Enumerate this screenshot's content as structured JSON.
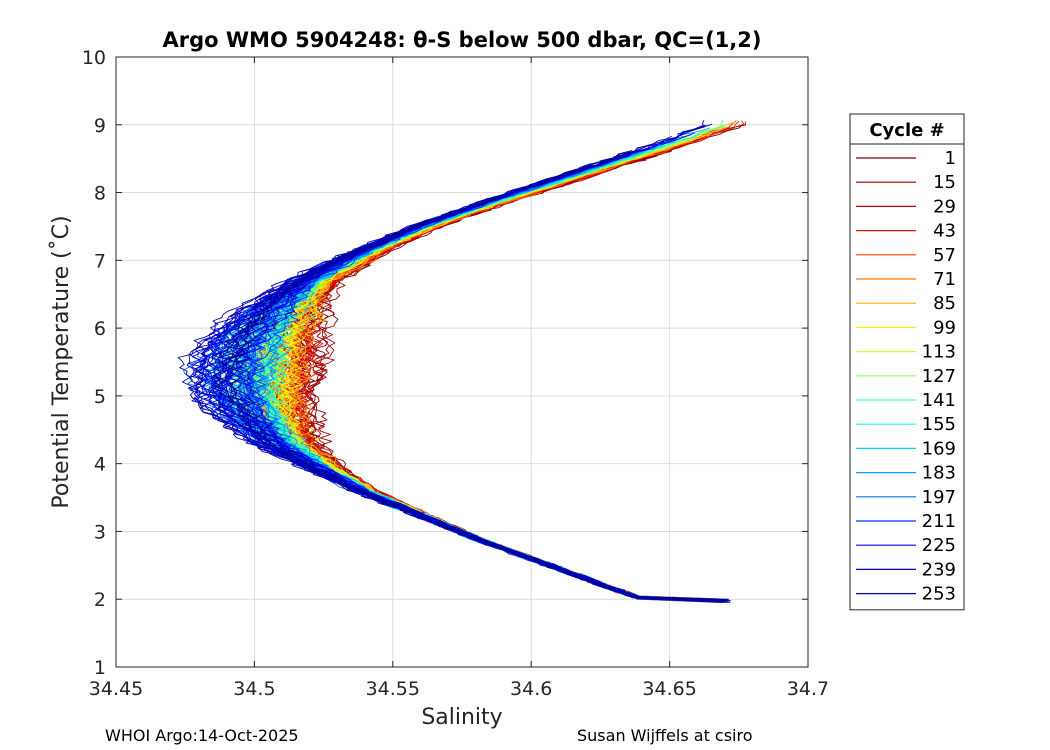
{
  "chart_data": {
    "type": "line",
    "title": "Argo WMO 5904248: θ-S below 500 dbar,  QC=(1,2)",
    "xlabel": "Salinity",
    "ylabel": "Potential Temperature (˚C)",
    "xlim": [
      34.45,
      34.7
    ],
    "ylim": [
      1,
      10
    ],
    "xticks": [
      "34.45",
      "34.5",
      "34.55",
      "34.6",
      "34.65",
      "34.7"
    ],
    "yticks": [
      "1",
      "2",
      "3",
      "4",
      "5",
      "6",
      "7",
      "8",
      "9",
      "10"
    ],
    "grid": true,
    "legend": {
      "title": "Cycle #",
      "position": "right",
      "entries": [
        {
          "label": "1",
          "color": "#800000"
        },
        {
          "label": "15",
          "color": "#9e0000"
        },
        {
          "label": "29",
          "color": "#c20000"
        },
        {
          "label": "43",
          "color": "#e41a00"
        },
        {
          "label": "57",
          "color": "#ff4000"
        },
        {
          "label": "71",
          "color": "#ff7a00"
        },
        {
          "label": "85",
          "color": "#ffb300"
        },
        {
          "label": "99",
          "color": "#ffee00"
        },
        {
          "label": "113",
          "color": "#c6ff2a"
        },
        {
          "label": "127",
          "color": "#8dff62"
        },
        {
          "label": "141",
          "color": "#4dffa3"
        },
        {
          "label": "155",
          "color": "#12ffe2"
        },
        {
          "label": "169",
          "color": "#00d2ff"
        },
        {
          "label": "183",
          "color": "#00a0ff"
        },
        {
          "label": "197",
          "color": "#0070ff"
        },
        {
          "label": "211",
          "color": "#0038ff"
        },
        {
          "label": "225",
          "color": "#0008ff"
        },
        {
          "label": "239",
          "color": "#0000d2"
        },
        {
          "label": "253",
          "color": "#0000a0"
        }
      ]
    },
    "series_template": {
      "description": "theta-S profile points (salinity, potential temperature) common shape",
      "points": [
        [
          34.64,
          2.0
        ],
        [
          34.62,
          2.3
        ],
        [
          34.6,
          2.6
        ],
        [
          34.58,
          2.9
        ],
        [
          34.56,
          3.25
        ],
        [
          34.54,
          3.6
        ],
        [
          34.525,
          3.95
        ],
        [
          34.512,
          4.3
        ],
        [
          34.505,
          4.7
        ],
        [
          34.502,
          5.1
        ],
        [
          34.503,
          5.5
        ],
        [
          34.506,
          5.9
        ],
        [
          34.512,
          6.3
        ],
        [
          34.522,
          6.7
        ],
        [
          34.54,
          7.1
        ],
        [
          34.562,
          7.5
        ],
        [
          34.59,
          7.9
        ],
        [
          34.62,
          8.3
        ],
        [
          34.65,
          8.7
        ],
        [
          34.67,
          9.0
        ]
      ]
    }
  },
  "footer": {
    "left": "WHOI Argo:14-Oct-2025",
    "right": "Susan Wijffels at csiro"
  }
}
